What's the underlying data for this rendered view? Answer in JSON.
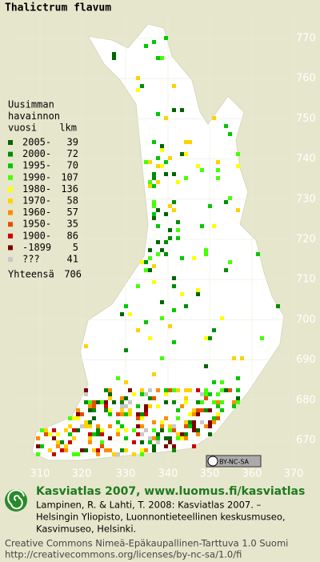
{
  "title": "Thalictrum flavum",
  "legend": {
    "heading": [
      "Uusimman",
      "havainnon",
      "vuosi"
    ],
    "count_heading": "lkm",
    "rows": [
      {
        "label": "2005-",
        "count": 39,
        "color": "#006400"
      },
      {
        "label": "2000-",
        "count": 72,
        "color": "#008c00"
      },
      {
        "label": "1995-",
        "count": 70,
        "color": "#00c800"
      },
      {
        "label": "1990-",
        "count": 107,
        "color": "#44ff00"
      },
      {
        "label": "1980-",
        "count": 136,
        "color": "#ffff00"
      },
      {
        "label": "1970-",
        "count": 58,
        "color": "#ffd200"
      },
      {
        "label": "1960-",
        "count": 57,
        "color": "#ff8c00"
      },
      {
        "label": "1950-",
        "count": 35,
        "color": "#e65000"
      },
      {
        "label": "1900-",
        "count": 86,
        "color": "#cc0000"
      },
      {
        "label": "-1899",
        "count": 5,
        "color": "#800000"
      },
      {
        "label": "???",
        "count": 41,
        "color": "#c8c8c8"
      }
    ],
    "total": {
      "label": "Yhteensä",
      "count": 706
    }
  },
  "x_labels": [
    310,
    320,
    330,
    340,
    350,
    360,
    370
  ],
  "y_labels": [
    770,
    760,
    750,
    740,
    730,
    720,
    710,
    700,
    690,
    680,
    670
  ],
  "badge": "BY-NC-SA",
  "footer": {
    "site": "Kasviatlas 2007, www.luomus.fi/kasviatlas",
    "citation": [
      "Lampinen, R. & Lahti, T. 2008: Kasviatlas 2007. –",
      "Helsingin Yliopisto, Luonnontieteellinen keskusmuseo,",
      "Kasvimuseo, Helsinki."
    ],
    "license": [
      "Creative Commons Nimeä-Epäkaupallinen-Tarttuva 1.0 Suomi",
      "http://creativecommons.org/licenses/by-nc-sa/1.0/fi"
    ]
  }
}
